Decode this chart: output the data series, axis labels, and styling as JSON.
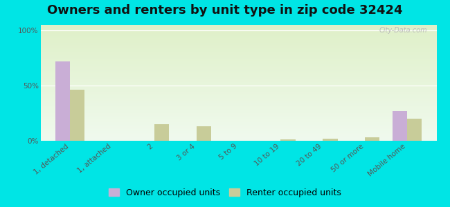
{
  "title": "Owners and renters by unit type in zip code 32424",
  "categories": [
    "1, detached",
    "1, attached",
    "2",
    "3 or 4",
    "5 to 9",
    "10 to 19",
    "20 to 49",
    "50 or more",
    "Mobile home"
  ],
  "owner_values": [
    72,
    0,
    0,
    0,
    0,
    0,
    0,
    0,
    27
  ],
  "renter_values": [
    46,
    0,
    15,
    13,
    0,
    1,
    2,
    3,
    20
  ],
  "owner_color": "#c9aed6",
  "renter_color": "#c8cc99",
  "background_color": "#00e5e5",
  "ylabel_ticks": [
    "0%",
    "50%",
    "100%"
  ],
  "ytick_vals": [
    0,
    50,
    100
  ],
  "ylim": [
    0,
    105
  ],
  "bar_width": 0.35,
  "legend_labels": [
    "Owner occupied units",
    "Renter occupied units"
  ],
  "title_fontsize": 13,
  "tick_fontsize": 7.5,
  "legend_fontsize": 9,
  "watermark": "City-Data.com"
}
